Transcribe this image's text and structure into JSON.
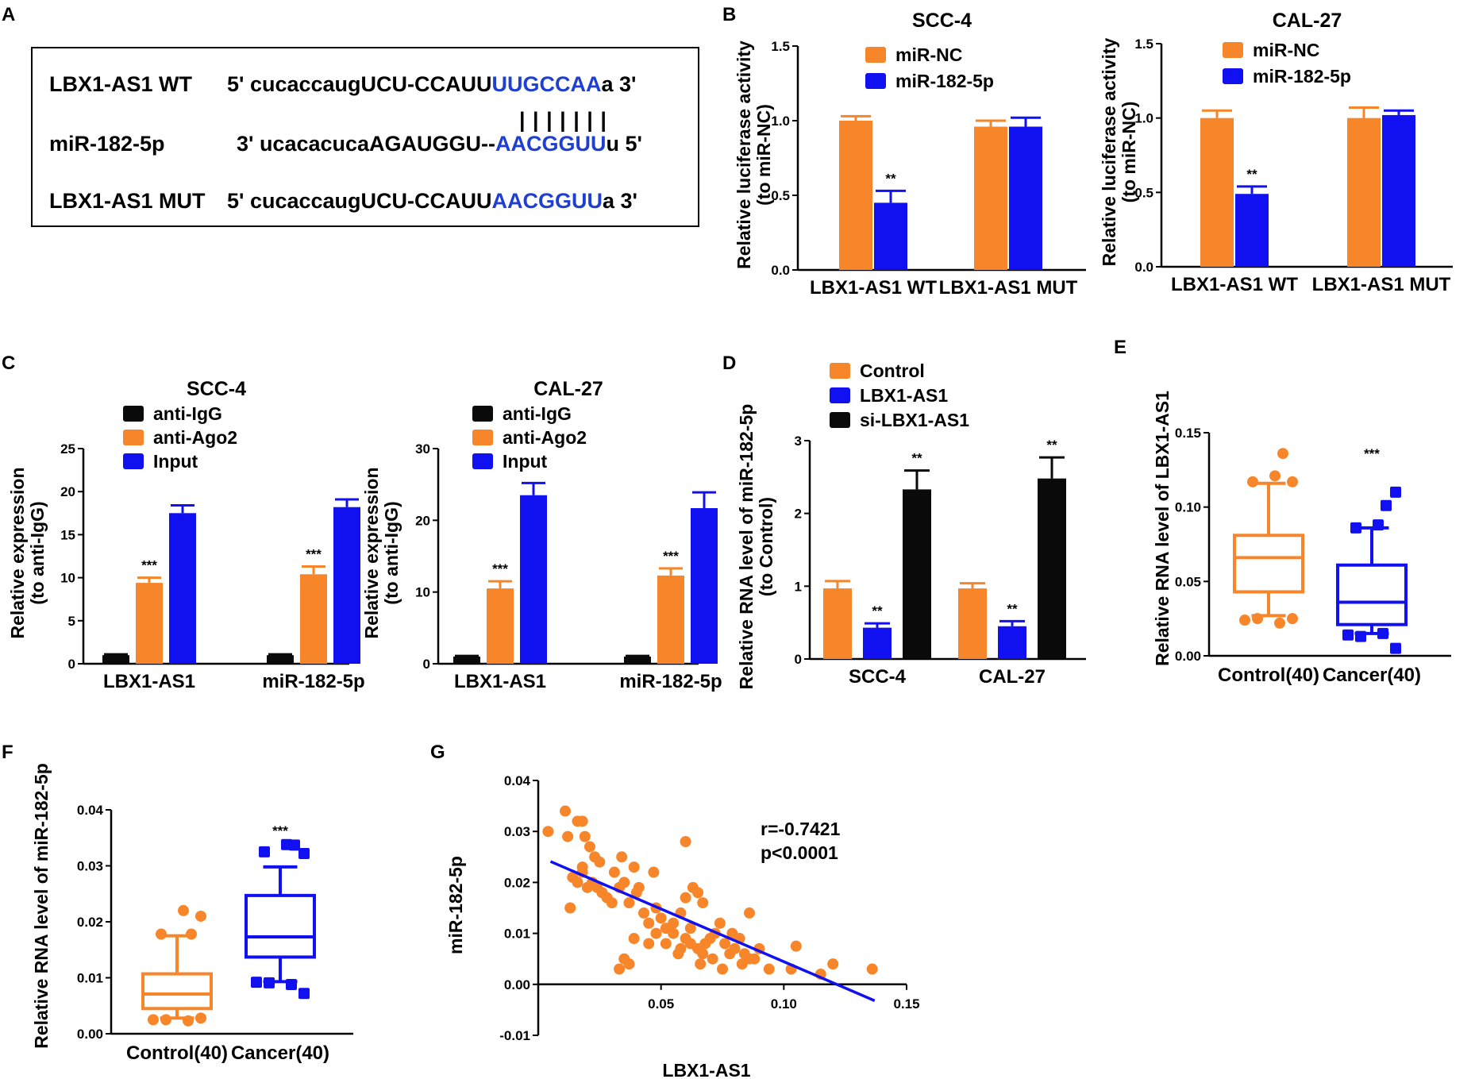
{
  "colors": {
    "orange": "#F7862A",
    "blue": "#1010F0",
    "black": "#0A0A0A",
    "seq_blue": "#1F3FD0"
  },
  "panel_letters": [
    "A",
    "B",
    "C",
    "D",
    "E",
    "F",
    "G"
  ],
  "panel_a": {
    "rows": [
      {
        "label": "LBX1-AS1 WT",
        "prefix": "5' cucaccaugUCU-CCAUU",
        "site": "UUGCCAA",
        "suffix": "a 3'"
      },
      {
        "label": "miR-182-5p",
        "prefix": "3' ucacacucaAGAUGGU--",
        "site": "AACGGUU",
        "suffix": "u 5'"
      },
      {
        "label": "LBX1-AS1 MUT",
        "prefix": "5' cucaccaugUCU-CCAUU",
        "site": "AACGGUU",
        "suffix": "a 3'"
      }
    ],
    "pairing_bars": "| | | | | | |"
  },
  "chart_data": [
    {
      "id": "B1",
      "type": "bar",
      "title": "SCC-4",
      "ylabel": "Relative luciferase activity",
      "ylabel2": "(to miR-NC)",
      "ylim": [
        0,
        1.5
      ],
      "yticks": [
        0,
        0.5,
        1.0,
        1.5
      ],
      "ytick_labels": [
        "0.0",
        "0.5",
        "1.0",
        "1.5"
      ],
      "categories": [
        "LBX1-AS1 WT",
        "LBX1-AS1 MUT"
      ],
      "series": [
        {
          "name": "miR-NC",
          "color": "orange",
          "values": [
            1.0,
            0.96
          ],
          "errors": [
            0.03,
            0.04
          ]
        },
        {
          "name": "miR-182-5p",
          "color": "blue",
          "values": [
            0.45,
            0.96
          ],
          "errors": [
            0.08,
            0.06
          ]
        }
      ],
      "annotations": [
        {
          "category": 0,
          "series": 1,
          "text": "**"
        }
      ]
    },
    {
      "id": "B2",
      "type": "bar",
      "title": "CAL-27",
      "ylabel": "Relative luciferase activity",
      "ylabel2": "(to miR-NC)",
      "ylim": [
        0,
        1.5
      ],
      "yticks": [
        0,
        0.5,
        1.0,
        1.5
      ],
      "ytick_labels": [
        "0.0",
        "0.5",
        "1.0",
        "1.5"
      ],
      "categories": [
        "LBX1-AS1 WT",
        "LBX1-AS1 MUT"
      ],
      "series": [
        {
          "name": "miR-NC",
          "color": "orange",
          "values": [
            1.0,
            1.0
          ],
          "errors": [
            0.05,
            0.07
          ]
        },
        {
          "name": "miR-182-5p",
          "color": "blue",
          "values": [
            0.49,
            1.02
          ],
          "errors": [
            0.05,
            0.03
          ]
        }
      ],
      "annotations": [
        {
          "category": 0,
          "series": 1,
          "text": "**"
        }
      ]
    },
    {
      "id": "C1",
      "type": "bar",
      "title": "SCC-4",
      "ylabel": "Relative expression",
      "ylabel2": "(to anti-IgG)",
      "ylim": [
        0,
        25
      ],
      "yticks": [
        0,
        5,
        10,
        15,
        20,
        25
      ],
      "ytick_labels": [
        "0",
        "5",
        "10",
        "15",
        "20",
        "25"
      ],
      "categories": [
        "LBX1-AS1",
        "miR-182-5p"
      ],
      "series": [
        {
          "name": "anti-IgG",
          "color": "black",
          "values": [
            1.0,
            1.0
          ],
          "errors": [
            0.1,
            0.1
          ]
        },
        {
          "name": "anti-Ago2",
          "color": "orange",
          "values": [
            9.4,
            10.4
          ],
          "errors": [
            0.6,
            0.9
          ]
        },
        {
          "name": "Input",
          "color": "blue",
          "values": [
            17.5,
            18.2
          ],
          "errors": [
            0.9,
            0.9
          ]
        }
      ],
      "annotations": [
        {
          "category": 0,
          "series": 1,
          "text": "***"
        },
        {
          "category": 1,
          "series": 1,
          "text": "***"
        }
      ]
    },
    {
      "id": "C2",
      "type": "bar",
      "title": "CAL-27",
      "ylabel": "Relative expression",
      "ylabel2": "(to anti-IgG)",
      "ylim": [
        0,
        30
      ],
      "yticks": [
        0,
        10,
        20,
        30
      ],
      "ytick_labels": [
        "0",
        "10",
        "20",
        "30"
      ],
      "categories": [
        "LBX1-AS1",
        "miR-182-5p"
      ],
      "series": [
        {
          "name": "anti-IgG",
          "color": "black",
          "values": [
            1.0,
            1.0
          ],
          "errors": [
            0.1,
            0.1
          ]
        },
        {
          "name": "anti-Ago2",
          "color": "orange",
          "values": [
            10.5,
            12.3
          ],
          "errors": [
            1.0,
            1.0
          ]
        },
        {
          "name": "Input",
          "color": "blue",
          "values": [
            23.5,
            21.7
          ],
          "errors": [
            1.7,
            2.2
          ]
        }
      ],
      "annotations": [
        {
          "category": 0,
          "series": 1,
          "text": "***"
        },
        {
          "category": 1,
          "series": 1,
          "text": "***"
        }
      ]
    },
    {
      "id": "D",
      "type": "bar",
      "title": "",
      "ylabel": "Relative RNA level of  miR-182-5p",
      "ylabel2": "(to Control)",
      "ylim": [
        0,
        3
      ],
      "yticks": [
        0,
        1,
        2,
        3
      ],
      "ytick_labels": [
        "0",
        "1",
        "2",
        "3"
      ],
      "categories": [
        "SCC-4",
        "CAL-27"
      ],
      "series": [
        {
          "name": "Control",
          "color": "orange",
          "values": [
            0.97,
            0.97
          ],
          "errors": [
            0.1,
            0.07
          ]
        },
        {
          "name": "LBX1-AS1",
          "color": "blue",
          "values": [
            0.43,
            0.45
          ],
          "errors": [
            0.06,
            0.07
          ]
        },
        {
          "name": "si-LBX1-AS1",
          "color": "black",
          "values": [
            2.33,
            2.48
          ],
          "errors": [
            0.26,
            0.29
          ]
        }
      ],
      "annotations": [
        {
          "category": 0,
          "series": 1,
          "text": "**"
        },
        {
          "category": 0,
          "series": 2,
          "text": "**"
        },
        {
          "category": 1,
          "series": 1,
          "text": "**"
        },
        {
          "category": 1,
          "series": 2,
          "text": "**"
        }
      ]
    },
    {
      "id": "E",
      "type": "box",
      "title": "",
      "ylabel": "Relative RNA level of  LBX1-AS1",
      "ylim": [
        0,
        0.15
      ],
      "yticks": [
        0,
        0.05,
        0.1,
        0.15
      ],
      "ytick_labels": [
        "0.00",
        "0.05",
        "0.10",
        "0.15"
      ],
      "categories": [
        "Control(40)",
        "Cancer(40)"
      ],
      "boxes": [
        {
          "color": "orange",
          "marker": "circle",
          "whisker_low": 0.027,
          "q1": 0.043,
          "median": 0.066,
          "q3": 0.081,
          "whisker_high": 0.116,
          "outliers": [
            0.024,
            0.025,
            0.022,
            0.025,
            0.117,
            0.121,
            0.117,
            0.136
          ]
        },
        {
          "color": "blue",
          "marker": "square",
          "whisker_low": 0.015,
          "q1": 0.021,
          "median": 0.036,
          "q3": 0.061,
          "whisker_high": 0.086,
          "outliers": [
            0.014,
            0.013,
            0.015,
            0.005,
            0.086,
            0.088,
            0.11,
            0.101
          ]
        }
      ],
      "annotations": [
        {
          "category": 1,
          "text": "***"
        }
      ]
    },
    {
      "id": "F",
      "type": "box",
      "title": "",
      "ylabel": "Relative RNA level of  miR-182-5p",
      "ylim": [
        0,
        0.04
      ],
      "yticks": [
        0,
        0.01,
        0.02,
        0.03,
        0.04
      ],
      "ytick_labels": [
        "0.00",
        "0.01",
        "0.02",
        "0.03",
        "0.04"
      ],
      "categories": [
        "Control(40)",
        "Cancer(40)"
      ],
      "boxes": [
        {
          "color": "orange",
          "marker": "circle",
          "whisker_low": 0.0028,
          "q1": 0.0045,
          "median": 0.0071,
          "q3": 0.0107,
          "whisker_high": 0.0175,
          "outliers": [
            0.0025,
            0.0025,
            0.0023,
            0.0028,
            0.0178,
            0.022,
            0.021,
            0.0178
          ]
        },
        {
          "color": "blue",
          "marker": "square",
          "whisker_low": 0.0093,
          "q1": 0.0137,
          "median": 0.0173,
          "q3": 0.0247,
          "whisker_high": 0.0298,
          "outliers": [
            0.0092,
            0.0091,
            0.0088,
            0.0072,
            0.0325,
            0.0338,
            0.0322,
            0.0337
          ]
        }
      ],
      "annotations": [
        {
          "category": 1,
          "text": "***"
        }
      ]
    },
    {
      "id": "G",
      "type": "scatter",
      "title": "",
      "xlabel": "LBX1-AS1",
      "ylabel": "miR-182-5p",
      "xlim": [
        0,
        0.15
      ],
      "ylim": [
        -0.01,
        0.04
      ],
      "xticks": [
        0.05,
        0.1,
        0.15
      ],
      "xtick_labels": [
        "0.05",
        "0.10",
        "0.15"
      ],
      "yticks": [
        -0.01,
        0,
        0.01,
        0.02,
        0.03,
        0.04
      ],
      "ytick_labels": [
        "-0.01",
        "0.00",
        "0.01",
        "0.02",
        "0.03",
        "0.04"
      ],
      "stat_r": "r=-0.7421",
      "stat_p": "p<0.0001",
      "fit": {
        "x1": 0.005,
        "y1": 0.0241,
        "x2": 0.137,
        "y2": -0.0032
      },
      "points": [
        [
          0.004,
          0.03
        ],
        [
          0.011,
          0.034
        ],
        [
          0.012,
          0.029
        ],
        [
          0.016,
          0.032
        ],
        [
          0.018,
          0.032
        ],
        [
          0.019,
          0.029
        ],
        [
          0.021,
          0.027
        ],
        [
          0.023,
          0.025
        ],
        [
          0.025,
          0.024
        ],
        [
          0.031,
          0.022
        ],
        [
          0.034,
          0.025
        ],
        [
          0.039,
          0.023
        ],
        [
          0.047,
          0.022
        ],
        [
          0.06,
          0.028
        ],
        [
          0.013,
          0.015
        ],
        [
          0.014,
          0.021
        ],
        [
          0.016,
          0.02
        ],
        [
          0.018,
          0.023
        ],
        [
          0.02,
          0.019
        ],
        [
          0.022,
          0.02
        ],
        [
          0.024,
          0.019
        ],
        [
          0.026,
          0.018
        ],
        [
          0.028,
          0.017
        ],
        [
          0.03,
          0.016
        ],
        [
          0.033,
          0.019
        ],
        [
          0.035,
          0.02
        ],
        [
          0.037,
          0.016
        ],
        [
          0.04,
          0.018
        ],
        [
          0.043,
          0.014
        ],
        [
          0.045,
          0.012
        ],
        [
          0.048,
          0.015
        ],
        [
          0.05,
          0.013
        ],
        [
          0.052,
          0.011
        ],
        [
          0.055,
          0.012
        ],
        [
          0.058,
          0.014
        ],
        [
          0.06,
          0.017
        ],
        [
          0.063,
          0.019
        ],
        [
          0.065,
          0.018
        ],
        [
          0.067,
          0.016
        ],
        [
          0.018,
          0.022
        ],
        [
          0.041,
          0.019
        ],
        [
          0.039,
          0.009
        ],
        [
          0.045,
          0.008
        ],
        [
          0.048,
          0.01
        ],
        [
          0.052,
          0.008
        ],
        [
          0.055,
          0.01
        ],
        [
          0.058,
          0.007
        ],
        [
          0.06,
          0.009
        ],
        [
          0.062,
          0.008
        ],
        [
          0.065,
          0.007
        ],
        [
          0.067,
          0.006
        ],
        [
          0.07,
          0.009
        ],
        [
          0.072,
          0.01
        ],
        [
          0.074,
          0.012
        ],
        [
          0.076,
          0.008
        ],
        [
          0.078,
          0.006
        ],
        [
          0.08,
          0.007
        ],
        [
          0.082,
          0.009
        ],
        [
          0.084,
          0.006
        ],
        [
          0.086,
          0.005
        ],
        [
          0.088,
          0.005
        ],
        [
          0.09,
          0.007
        ],
        [
          0.035,
          0.005
        ],
        [
          0.037,
          0.004
        ],
        [
          0.033,
          0.003
        ],
        [
          0.066,
          0.004
        ],
        [
          0.075,
          0.003
        ],
        [
          0.083,
          0.004
        ],
        [
          0.094,
          0.003
        ],
        [
          0.103,
          0.003
        ],
        [
          0.105,
          0.0075
        ],
        [
          0.115,
          0.002
        ],
        [
          0.12,
          0.004
        ],
        [
          0.136,
          0.003
        ],
        [
          0.062,
          0.011
        ],
        [
          0.071,
          0.005
        ],
        [
          0.086,
          0.014
        ],
        [
          0.057,
          0.006
        ],
        [
          0.068,
          0.008
        ],
        [
          0.079,
          0.01
        ]
      ]
    }
  ]
}
